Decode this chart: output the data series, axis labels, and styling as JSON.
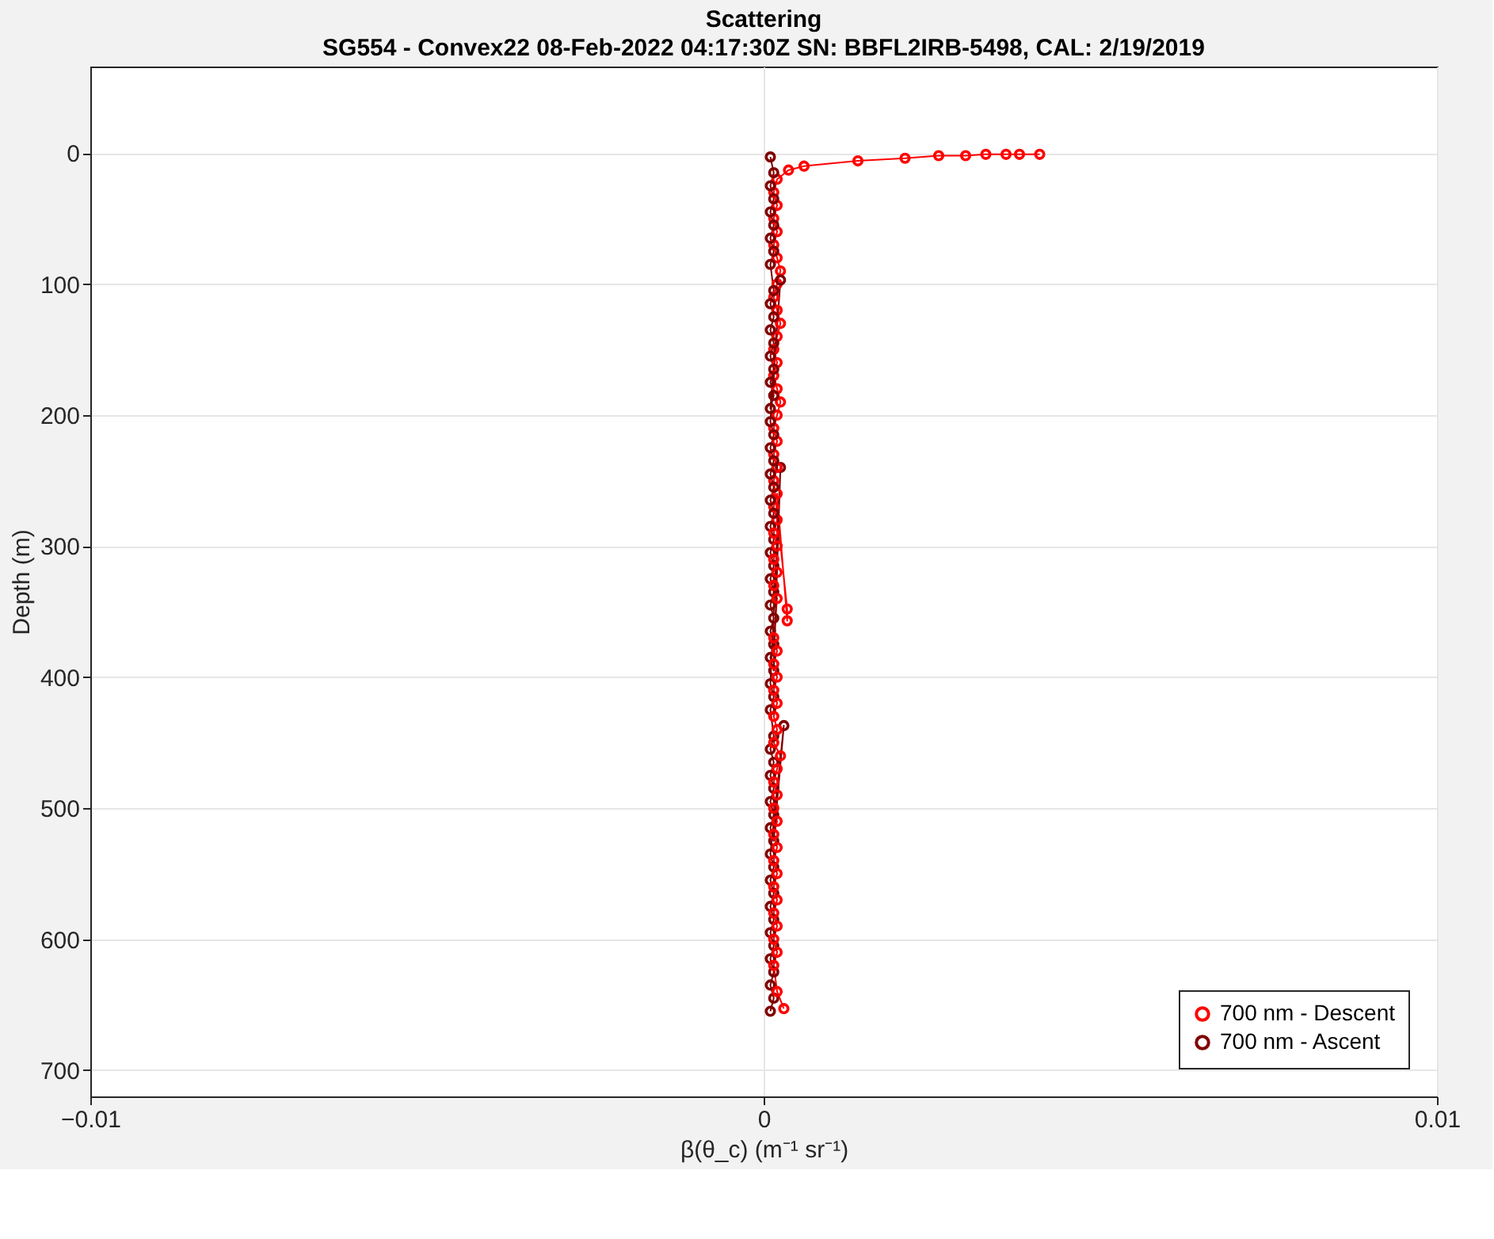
{
  "chart_data": {
    "type": "line",
    "title": "Scattering",
    "subtitle": "SG554 - Convex22 08-Feb-2022 04:17:30Z        SN: BBFL2IRB-5498, CAL: 2/19/2019",
    "xlabel": "β(θ_c) (m⁻¹ sr⁻¹)",
    "ylabel": "Depth (m)",
    "xlim": [
      -0.01,
      0.01
    ],
    "xticks": [
      -0.01,
      0,
      0.01
    ],
    "ylim": [
      720,
      -66
    ],
    "yticks": [
      0,
      100,
      200,
      300,
      400,
      500,
      600,
      700
    ],
    "grid": true,
    "legend": "bottom right",
    "marker": "circle",
    "line_style": "solid",
    "series": [
      {
        "name": "700 nm - Descent",
        "color": "#ff0000",
        "x": [
          0.0041,
          0.0038,
          0.0036,
          0.0033,
          0.003,
          0.0026,
          0.0021,
          0.0014,
          0.0006,
          0.00037,
          0.0002,
          0.00015,
          0.0002,
          0.00015,
          0.0002,
          0.00015,
          0.0002,
          0.00025,
          0.0002,
          0.00015,
          0.0002,
          0.00025,
          0.0002,
          0.00015,
          0.0002,
          0.00015,
          0.0002,
          0.00025,
          0.0002,
          0.00015,
          0.0002,
          0.00015,
          0.0002,
          0.00015,
          0.00035,
          0.00035,
          0.0002,
          0.00015,
          0.0002,
          0.00015,
          0.0002,
          0.00015,
          0.0002,
          0.00015,
          0.0002,
          0.00015,
          0.0002,
          0.00015,
          0.0002,
          0.00015,
          0.0002,
          0.00015,
          0.0002,
          0.00015,
          0.00025,
          0.0002,
          0.00015,
          0.0002,
          0.00015,
          0.0002,
          0.00015,
          0.0002,
          0.00015,
          0.0002,
          0.00015,
          0.0002,
          0.00015,
          0.0002,
          0.00015,
          0.0002,
          0.00015,
          0.0002,
          0.0003
        ],
        "values": [
          1,
          1,
          1,
          1,
          2,
          2,
          4,
          6,
          10,
          13,
          20,
          30,
          40,
          50,
          60,
          70,
          80,
          90,
          100,
          110,
          120,
          130,
          140,
          150,
          160,
          170,
          180,
          190,
          200,
          210,
          220,
          230,
          240,
          250,
          348,
          357,
          260,
          270,
          280,
          290,
          300,
          310,
          320,
          330,
          340,
          370,
          380,
          390,
          400,
          410,
          420,
          430,
          440,
          450,
          460,
          470,
          480,
          490,
          500,
          510,
          520,
          530,
          540,
          550,
          560,
          570,
          580,
          590,
          600,
          610,
          620,
          640,
          653
        ]
      },
      {
        "name": "700 nm - Ascent",
        "color": "#800000",
        "x": [
          0.0001,
          0.00015,
          0.0001,
          0.00015,
          0.0001,
          0.00015,
          0.0001,
          0.00015,
          0.0001,
          0.00015,
          0.0001,
          0.00015,
          0.0001,
          0.0003,
          0.00015,
          0.0001,
          0.00015,
          0.0001,
          0.00015,
          0.0001,
          0.00015,
          0.0001,
          0.00015,
          0.0001,
          0.00015,
          0.0001,
          0.00025,
          0.00015,
          0.0001,
          0.00015,
          0.0001,
          0.00015,
          0.0001,
          0.00015,
          0.0001,
          0.00015,
          0.0001,
          0.00015,
          0.0001,
          0.00015,
          0.0001,
          0.00015,
          0.0001,
          0.00015,
          0.0001,
          0.00015,
          0.0001,
          0.00025,
          0.0001,
          0.00015,
          0.0001,
          0.00015,
          0.0001,
          0.00015,
          0.0001,
          0.00015,
          0.0001,
          0.00015,
          0.0001,
          0.00015,
          0.0001,
          0.00015,
          0.0001,
          0.00015,
          0.0001,
          0.00015,
          0.0001
        ],
        "values": [
          655,
          645,
          635,
          625,
          615,
          605,
          595,
          585,
          575,
          565,
          555,
          545,
          535,
          437,
          525,
          515,
          505,
          495,
          485,
          475,
          465,
          455,
          445,
          425,
          415,
          405,
          240,
          395,
          385,
          375,
          365,
          355,
          345,
          335,
          325,
          315,
          305,
          295,
          285,
          275,
          265,
          255,
          245,
          235,
          225,
          215,
          205,
          97,
          195,
          185,
          175,
          165,
          155,
          145,
          135,
          125,
          115,
          105,
          85,
          75,
          65,
          55,
          45,
          35,
          25,
          15,
          3
        ]
      }
    ]
  }
}
